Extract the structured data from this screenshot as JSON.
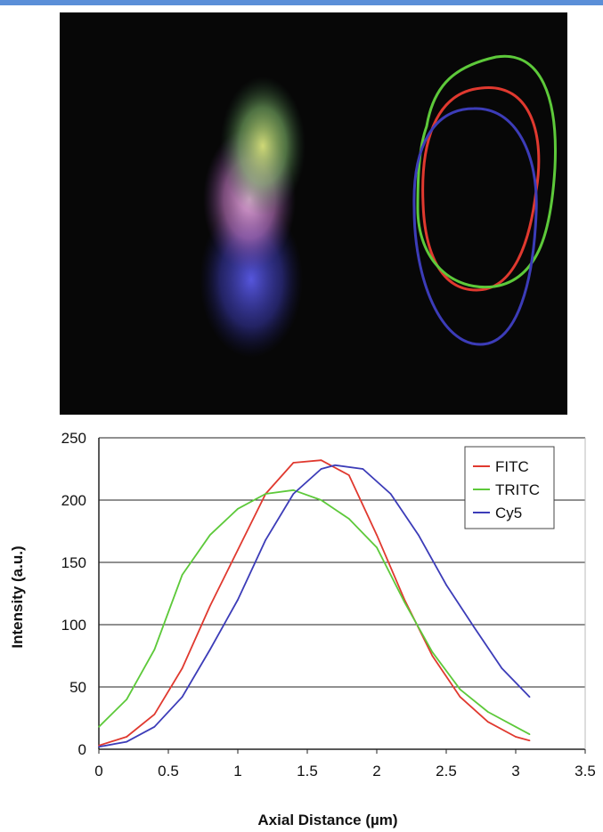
{
  "colors": {
    "fitc": "#e0392f",
    "tritc": "#5dc93a",
    "cy5": "#3c3cb8",
    "micrograph_background": "#070707",
    "grid": "#222222"
  },
  "chart_data": {
    "type": "line",
    "xlabel": "Axial Distance (µm)",
    "ylabel": "Intensity (a.u.)",
    "xlim": [
      0,
      3.5
    ],
    "ylim": [
      0,
      250
    ],
    "x_ticks": [
      "0",
      "0.5",
      "1",
      "1.5",
      "2",
      "2.5",
      "3",
      "3.5"
    ],
    "y_ticks": [
      "0",
      "50",
      "100",
      "150",
      "200",
      "250"
    ],
    "grid": "horizontal",
    "legend_position": "top-right",
    "series": [
      {
        "name": "FITC",
        "color": "#e0392f",
        "points": [
          [
            0,
            3
          ],
          [
            0.2,
            10
          ],
          [
            0.4,
            28
          ],
          [
            0.6,
            65
          ],
          [
            0.8,
            115
          ],
          [
            1.0,
            160
          ],
          [
            1.2,
            205
          ],
          [
            1.4,
            230
          ],
          [
            1.6,
            232
          ],
          [
            1.8,
            220
          ],
          [
            2.0,
            172
          ],
          [
            2.2,
            120
          ],
          [
            2.4,
            75
          ],
          [
            2.6,
            42
          ],
          [
            2.8,
            22
          ],
          [
            3.0,
            10
          ],
          [
            3.1,
            7
          ]
        ]
      },
      {
        "name": "TRITC",
        "color": "#5dc93a",
        "points": [
          [
            0,
            18
          ],
          [
            0.2,
            40
          ],
          [
            0.4,
            80
          ],
          [
            0.6,
            140
          ],
          [
            0.8,
            172
          ],
          [
            1.0,
            193
          ],
          [
            1.2,
            205
          ],
          [
            1.4,
            208
          ],
          [
            1.6,
            200
          ],
          [
            1.8,
            185
          ],
          [
            2.0,
            162
          ],
          [
            2.2,
            118
          ],
          [
            2.4,
            78
          ],
          [
            2.6,
            48
          ],
          [
            2.8,
            30
          ],
          [
            3.0,
            18
          ],
          [
            3.1,
            12
          ]
        ]
      },
      {
        "name": "Cy5",
        "color": "#3c3cb8",
        "points": [
          [
            0,
            2
          ],
          [
            0.2,
            6
          ],
          [
            0.4,
            18
          ],
          [
            0.6,
            42
          ],
          [
            0.8,
            80
          ],
          [
            1.0,
            120
          ],
          [
            1.2,
            168
          ],
          [
            1.4,
            205
          ],
          [
            1.6,
            225
          ],
          [
            1.7,
            228
          ],
          [
            1.9,
            225
          ],
          [
            2.1,
            205
          ],
          [
            2.3,
            172
          ],
          [
            2.5,
            132
          ],
          [
            2.7,
            98
          ],
          [
            2.9,
            65
          ],
          [
            3.1,
            42
          ]
        ]
      }
    ]
  }
}
